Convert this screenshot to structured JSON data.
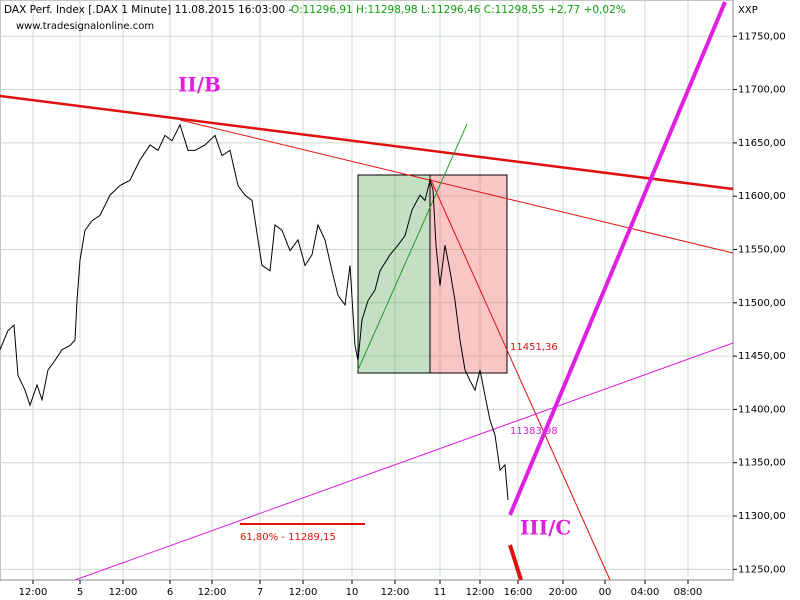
{
  "chart_data": {
    "type": "line",
    "title": "DAX Perf. Index [.DAX  1 Minute]  11.08.2015 16:03:00 -",
    "subtitle": "O:11296,91 H:11298,98 L:11296,46 C:11298,55 +2,77 +0,02%",
    "source": "www.tradesignalonline.com",
    "axis_label": "XXP",
    "annotations": [
      "II/B",
      "III/C",
      "11451,36",
      "11383,98",
      "61,80% - 11289,15"
    ],
    "x": [
      0,
      8,
      14,
      18,
      25,
      30,
      37,
      42,
      48,
      55,
      62,
      70,
      75,
      77,
      80,
      85,
      92,
      100,
      110,
      120,
      130,
      140,
      150,
      158,
      165,
      172,
      180,
      188,
      195,
      205,
      215,
      222,
      230,
      238,
      245,
      252,
      258,
      262,
      270,
      275,
      282,
      290,
      298,
      305,
      312,
      318,
      325,
      332,
      338,
      345,
      350,
      355,
      358,
      362,
      368,
      375,
      380,
      390,
      398,
      405,
      412,
      420,
      425,
      430,
      433,
      436,
      440,
      445,
      450,
      455,
      460,
      465,
      470,
      475,
      480,
      485,
      490,
      495,
      500,
      505,
      508
    ],
    "values": [
      11456,
      11474,
      11479,
      11432,
      11418,
      11404,
      11423,
      11409,
      11437,
      11446,
      11456,
      11460,
      11465,
      11502,
      11540,
      11568,
      11577,
      11582,
      11601,
      11610,
      11615,
      11634,
      11648,
      11643,
      11657,
      11652,
      11667,
      11643,
      11643,
      11648,
      11657,
      11638,
      11643,
      11610,
      11601,
      11596,
      11559,
      11535,
      11530,
      11573,
      11568,
      11549,
      11559,
      11535,
      11545,
      11573,
      11559,
      11530,
      11507,
      11498,
      11535,
      11460,
      11446,
      11484,
      11502,
      11512,
      11530,
      11545,
      11554,
      11563,
      11587,
      11601,
      11596,
      11615,
      11606,
      11554,
      11516,
      11554,
      11530,
      11502,
      11465,
      11437,
      11427,
      11418,
      11437,
      11413,
      11390,
      11376,
      11343,
      11348,
      11315
    ],
    "color": "#000000",
    "xlim": [
      0,
      733
    ],
    "ylim": [
      11240,
      11784
    ],
    "xticks": [
      {
        "value": 33,
        "label": "12:00"
      },
      {
        "value": 80,
        "label": "5"
      },
      {
        "value": 123,
        "label": "12:00"
      },
      {
        "value": 170,
        "label": "6"
      },
      {
        "value": 212,
        "label": "12:00"
      },
      {
        "value": 260,
        "label": "7"
      },
      {
        "value": 303,
        "label": "12:00"
      },
      {
        "value": 352,
        "label": "10"
      },
      {
        "value": 395,
        "label": "12:00"
      },
      {
        "value": 440,
        "label": "11"
      },
      {
        "value": 480,
        "label": "12:00"
      },
      {
        "value": 518,
        "label": "16:00"
      },
      {
        "value": 563,
        "label": "20:00"
      },
      {
        "value": 605,
        "label": "00"
      },
      {
        "value": 645,
        "label": "04:00"
      },
      {
        "value": 688,
        "label": "08:00"
      }
    ],
    "yticks": [
      {
        "value": 11250,
        "label": "11250,00"
      },
      {
        "value": 11300,
        "label": "11300,00"
      },
      {
        "value": 11350,
        "label": "11350,00"
      },
      {
        "value": 11400,
        "label": "11400,00"
      },
      {
        "value": 11450,
        "label": "11450,00"
      },
      {
        "value": 11500,
        "label": "11500,00"
      },
      {
        "value": 11550,
        "label": "11550,00"
      },
      {
        "value": 11600,
        "label": "11600,00"
      },
      {
        "value": 11650,
        "label": "11650,00"
      },
      {
        "value": 11700,
        "label": "11700,00"
      },
      {
        "value": 11750,
        "label": "11750,00"
      }
    ],
    "grid": true
  }
}
